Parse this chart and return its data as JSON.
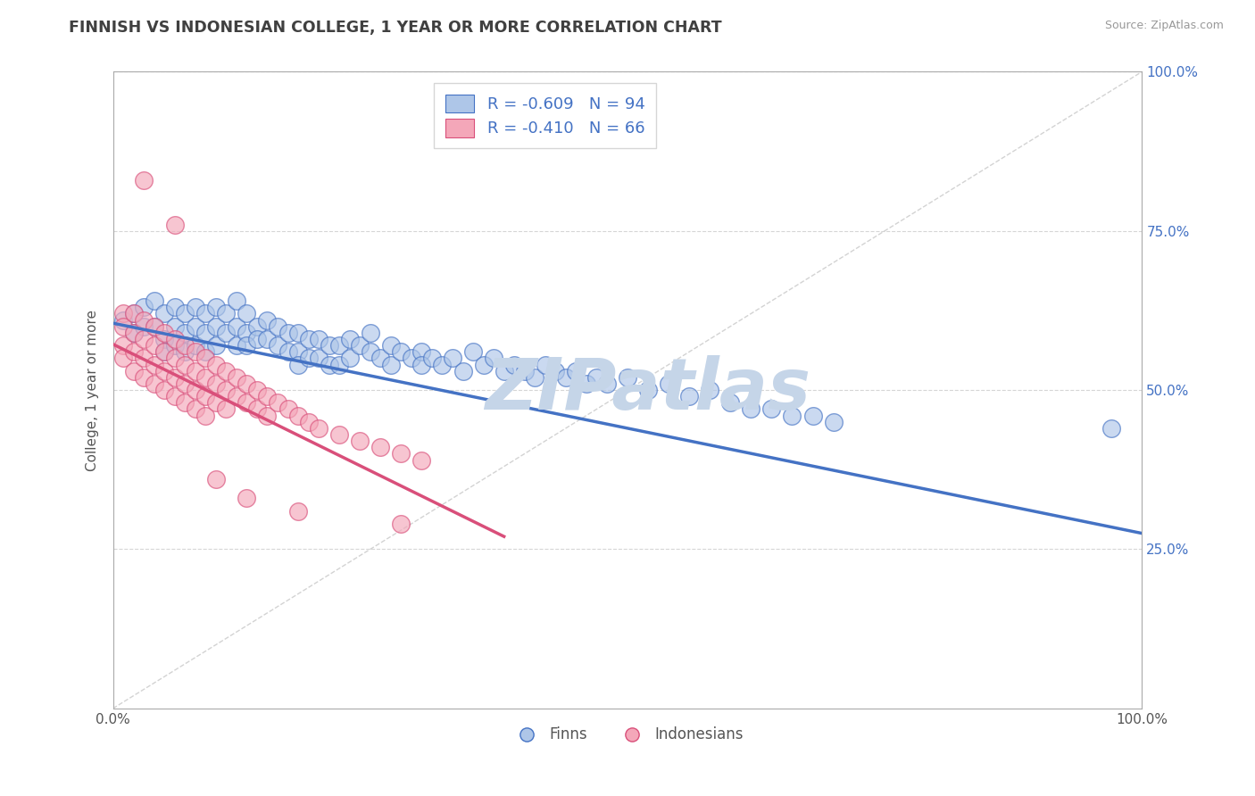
{
  "title": "FINNISH VS INDONESIAN COLLEGE, 1 YEAR OR MORE CORRELATION CHART",
  "source": "Source: ZipAtlas.com",
  "ylabel": "College, 1 year or more",
  "xlim": [
    0.0,
    1.0
  ],
  "ylim": [
    0.0,
    1.0
  ],
  "legend_r1": "R = -0.609",
  "legend_n1": "N = 94",
  "legend_r2": "R = -0.410",
  "legend_n2": "N = 66",
  "finn_color": "#aec6e8",
  "finn_line_color": "#4472c4",
  "indo_color": "#f4a7b9",
  "indo_line_color": "#d94f7a",
  "diagonal_color": "#c8c8c8",
  "watermark_text": "ZIPatlas",
  "watermark_color": "#c5d5e8",
  "grid_color": "#cccccc",
  "title_color": "#404040",
  "finn_trendline": [
    [
      0.0,
      0.605
    ],
    [
      1.0,
      0.275
    ]
  ],
  "indo_trendline": [
    [
      0.0,
      0.572
    ],
    [
      0.38,
      0.27
    ]
  ],
  "finn_scatter": [
    [
      0.01,
      0.61
    ],
    [
      0.02,
      0.62
    ],
    [
      0.02,
      0.59
    ],
    [
      0.03,
      0.63
    ],
    [
      0.03,
      0.6
    ],
    [
      0.04,
      0.64
    ],
    [
      0.04,
      0.6
    ],
    [
      0.05,
      0.62
    ],
    [
      0.05,
      0.58
    ],
    [
      0.05,
      0.56
    ],
    [
      0.06,
      0.63
    ],
    [
      0.06,
      0.6
    ],
    [
      0.06,
      0.57
    ],
    [
      0.07,
      0.62
    ],
    [
      0.07,
      0.59
    ],
    [
      0.07,
      0.56
    ],
    [
      0.08,
      0.63
    ],
    [
      0.08,
      0.6
    ],
    [
      0.08,
      0.57
    ],
    [
      0.09,
      0.62
    ],
    [
      0.09,
      0.59
    ],
    [
      0.09,
      0.56
    ],
    [
      0.1,
      0.63
    ],
    [
      0.1,
      0.6
    ],
    [
      0.1,
      0.57
    ],
    [
      0.11,
      0.62
    ],
    [
      0.11,
      0.59
    ],
    [
      0.12,
      0.64
    ],
    [
      0.12,
      0.6
    ],
    [
      0.12,
      0.57
    ],
    [
      0.13,
      0.62
    ],
    [
      0.13,
      0.59
    ],
    [
      0.13,
      0.57
    ],
    [
      0.14,
      0.6
    ],
    [
      0.14,
      0.58
    ],
    [
      0.15,
      0.61
    ],
    [
      0.15,
      0.58
    ],
    [
      0.16,
      0.6
    ],
    [
      0.16,
      0.57
    ],
    [
      0.17,
      0.59
    ],
    [
      0.17,
      0.56
    ],
    [
      0.18,
      0.59
    ],
    [
      0.18,
      0.56
    ],
    [
      0.18,
      0.54
    ],
    [
      0.19,
      0.58
    ],
    [
      0.19,
      0.55
    ],
    [
      0.2,
      0.58
    ],
    [
      0.2,
      0.55
    ],
    [
      0.21,
      0.57
    ],
    [
      0.21,
      0.54
    ],
    [
      0.22,
      0.57
    ],
    [
      0.22,
      0.54
    ],
    [
      0.23,
      0.58
    ],
    [
      0.23,
      0.55
    ],
    [
      0.24,
      0.57
    ],
    [
      0.25,
      0.59
    ],
    [
      0.25,
      0.56
    ],
    [
      0.26,
      0.55
    ],
    [
      0.27,
      0.57
    ],
    [
      0.27,
      0.54
    ],
    [
      0.28,
      0.56
    ],
    [
      0.29,
      0.55
    ],
    [
      0.3,
      0.56
    ],
    [
      0.3,
      0.54
    ],
    [
      0.31,
      0.55
    ],
    [
      0.32,
      0.54
    ],
    [
      0.33,
      0.55
    ],
    [
      0.34,
      0.53
    ],
    [
      0.35,
      0.56
    ],
    [
      0.36,
      0.54
    ],
    [
      0.37,
      0.55
    ],
    [
      0.38,
      0.53
    ],
    [
      0.39,
      0.54
    ],
    [
      0.4,
      0.53
    ],
    [
      0.41,
      0.52
    ],
    [
      0.42,
      0.54
    ],
    [
      0.43,
      0.53
    ],
    [
      0.44,
      0.52
    ],
    [
      0.45,
      0.53
    ],
    [
      0.46,
      0.51
    ],
    [
      0.47,
      0.52
    ],
    [
      0.48,
      0.51
    ],
    [
      0.5,
      0.52
    ],
    [
      0.52,
      0.5
    ],
    [
      0.54,
      0.51
    ],
    [
      0.56,
      0.49
    ],
    [
      0.58,
      0.5
    ],
    [
      0.6,
      0.48
    ],
    [
      0.62,
      0.47
    ],
    [
      0.64,
      0.47
    ],
    [
      0.66,
      0.46
    ],
    [
      0.68,
      0.46
    ],
    [
      0.7,
      0.45
    ],
    [
      0.97,
      0.44
    ]
  ],
  "indo_scatter": [
    [
      0.01,
      0.62
    ],
    [
      0.01,
      0.6
    ],
    [
      0.01,
      0.57
    ],
    [
      0.01,
      0.55
    ],
    [
      0.02,
      0.62
    ],
    [
      0.02,
      0.59
    ],
    [
      0.02,
      0.56
    ],
    [
      0.02,
      0.53
    ],
    [
      0.03,
      0.61
    ],
    [
      0.03,
      0.58
    ],
    [
      0.03,
      0.55
    ],
    [
      0.03,
      0.52
    ],
    [
      0.04,
      0.6
    ],
    [
      0.04,
      0.57
    ],
    [
      0.04,
      0.54
    ],
    [
      0.04,
      0.51
    ],
    [
      0.05,
      0.59
    ],
    [
      0.05,
      0.56
    ],
    [
      0.05,
      0.53
    ],
    [
      0.05,
      0.5
    ],
    [
      0.06,
      0.58
    ],
    [
      0.06,
      0.55
    ],
    [
      0.06,
      0.52
    ],
    [
      0.06,
      0.49
    ],
    [
      0.07,
      0.57
    ],
    [
      0.07,
      0.54
    ],
    [
      0.07,
      0.51
    ],
    [
      0.07,
      0.48
    ],
    [
      0.08,
      0.56
    ],
    [
      0.08,
      0.53
    ],
    [
      0.08,
      0.5
    ],
    [
      0.08,
      0.47
    ],
    [
      0.09,
      0.55
    ],
    [
      0.09,
      0.52
    ],
    [
      0.09,
      0.49
    ],
    [
      0.09,
      0.46
    ],
    [
      0.1,
      0.54
    ],
    [
      0.1,
      0.51
    ],
    [
      0.1,
      0.48
    ],
    [
      0.11,
      0.53
    ],
    [
      0.11,
      0.5
    ],
    [
      0.11,
      0.47
    ],
    [
      0.12,
      0.52
    ],
    [
      0.12,
      0.49
    ],
    [
      0.13,
      0.51
    ],
    [
      0.13,
      0.48
    ],
    [
      0.14,
      0.5
    ],
    [
      0.14,
      0.47
    ],
    [
      0.15,
      0.49
    ],
    [
      0.15,
      0.46
    ],
    [
      0.16,
      0.48
    ],
    [
      0.17,
      0.47
    ],
    [
      0.18,
      0.46
    ],
    [
      0.19,
      0.45
    ],
    [
      0.2,
      0.44
    ],
    [
      0.22,
      0.43
    ],
    [
      0.24,
      0.42
    ],
    [
      0.26,
      0.41
    ],
    [
      0.28,
      0.4
    ],
    [
      0.3,
      0.39
    ],
    [
      0.03,
      0.83
    ],
    [
      0.06,
      0.76
    ],
    [
      0.1,
      0.36
    ],
    [
      0.13,
      0.33
    ],
    [
      0.18,
      0.31
    ],
    [
      0.28,
      0.29
    ]
  ]
}
